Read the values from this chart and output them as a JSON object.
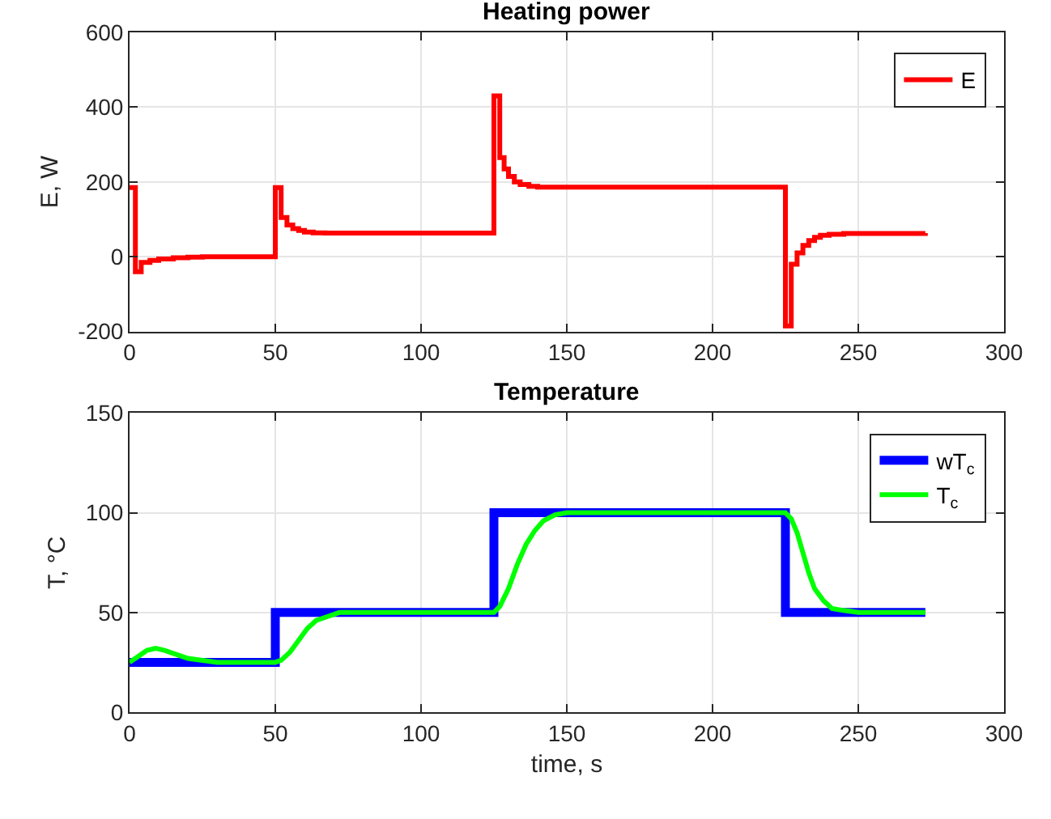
{
  "chart_data": [
    {
      "type": "step",
      "title": "Heating power",
      "ylabel": "E, W",
      "xlim": [
        0,
        300
      ],
      "xticks": [
        0,
        50,
        100,
        150,
        200,
        250,
        300
      ],
      "ylim": [
        -200,
        600
      ],
      "yticks": [
        -200,
        0,
        200,
        400,
        600
      ],
      "grid": true,
      "legend": "top right",
      "series": [
        {
          "name": "E",
          "color": "#ff0000",
          "x": [
            0,
            2,
            4,
            7,
            10,
            15,
            20,
            25,
            50,
            52,
            54,
            56,
            58,
            60,
            63,
            67,
            125,
            127,
            128.5,
            130,
            132,
            134,
            137,
            140,
            225,
            227,
            229,
            231,
            233,
            235,
            237,
            240,
            245,
            273
          ],
          "values": [
            185,
            -40,
            -15,
            -10,
            -6,
            -3,
            -1,
            0,
            185,
            105,
            85,
            75,
            70,
            66,
            64,
            63,
            430,
            265,
            235,
            215,
            200,
            193,
            188,
            186,
            -185,
            -20,
            10,
            30,
            43,
            52,
            57,
            60,
            62,
            63
          ]
        }
      ]
    },
    {
      "type": "line",
      "title": "Temperature",
      "xlabel": "time, s",
      "ylabel": "T, °C",
      "xlim": [
        0,
        300
      ],
      "xticks": [
        0,
        50,
        100,
        150,
        200,
        250,
        300
      ],
      "ylim": [
        0,
        150
      ],
      "yticks": [
        0,
        50,
        100,
        150
      ],
      "grid": true,
      "legend": "top right",
      "series": [
        {
          "name": "wT$_{c}$",
          "color": "#0000ff",
          "type": "step",
          "x": [
            0,
            50,
            125,
            225,
            273
          ],
          "values": [
            25,
            50,
            100,
            50,
            50
          ]
        },
        {
          "name": "T$_{c}$",
          "color": "#00ff00",
          "x": [
            0,
            3,
            6,
            9,
            12,
            16,
            20,
            25,
            30,
            40,
            50,
            52,
            55,
            58,
            61,
            64,
            68,
            72,
            80,
            125,
            127,
            130,
            133,
            136,
            139,
            142,
            146,
            150,
            225,
            227,
            229,
            231,
            233,
            235,
            238,
            241,
            245,
            250,
            273
          ],
          "values": [
            25,
            28,
            31,
            32,
            31,
            29,
            27,
            26,
            25,
            25,
            25,
            26,
            30,
            36,
            42,
            46,
            48,
            50,
            50,
            50,
            53,
            62,
            74,
            84,
            91,
            96,
            99,
            100,
            100,
            97,
            90,
            80,
            70,
            62,
            56,
            52,
            51,
            50,
            50
          ]
        }
      ]
    }
  ]
}
